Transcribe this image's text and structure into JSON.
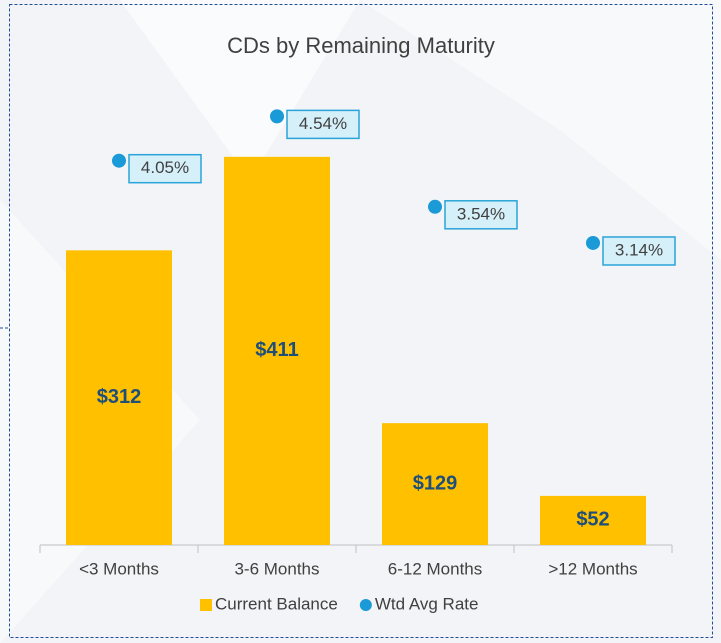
{
  "chart_data": {
    "type": "bar",
    "title": "CDs by Remaining Maturity",
    "categories": [
      "<3 Months",
      "3-6 Months",
      "6-12 Months",
      ">12 Months"
    ],
    "series": [
      {
        "name": "Current Balance",
        "color": "#ffc000",
        "type": "bar",
        "values": [
          312,
          411,
          129,
          52
        ],
        "value_labels": [
          "$312",
          "$411",
          "$129",
          "$52"
        ]
      },
      {
        "name": "Wtd Avg Rate",
        "color": "#1a9ad6",
        "type": "scatter",
        "axis": "y2",
        "values": [
          4.05,
          4.54,
          3.54,
          3.14
        ],
        "value_labels": [
          "4.05%",
          "4.54%",
          "3.54%",
          "3.14%"
        ]
      }
    ],
    "ylim": [
      0,
      450
    ],
    "y2lim": [
      -0.2,
      4.5
    ],
    "legend": "bottom"
  }
}
